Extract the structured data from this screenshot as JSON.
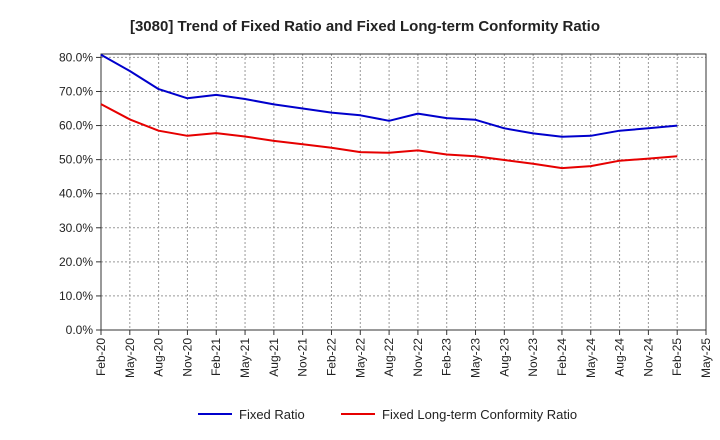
{
  "chart_data": {
    "type": "line",
    "title": "[3080]  Trend of Fixed Ratio and Fixed Long-term Conformity Ratio",
    "xlabel": "",
    "ylabel": "",
    "x": [
      "Feb-20",
      "May-20",
      "Aug-20",
      "Nov-20",
      "Feb-21",
      "May-21",
      "Aug-21",
      "Nov-21",
      "Feb-22",
      "May-22",
      "Aug-22",
      "Nov-22",
      "Feb-23",
      "May-23",
      "Aug-23",
      "Nov-23",
      "Feb-24",
      "May-24",
      "Aug-24",
      "Nov-24",
      "Feb-25"
    ],
    "x_ticks": [
      "Feb-20",
      "May-20",
      "Aug-20",
      "Nov-20",
      "Feb-21",
      "May-21",
      "Aug-21",
      "Nov-21",
      "Feb-22",
      "May-22",
      "Aug-22",
      "Nov-22",
      "Feb-23",
      "May-23",
      "Aug-23",
      "Nov-23",
      "Feb-24",
      "May-24",
      "Aug-24",
      "Nov-24",
      "Feb-25",
      "May-25"
    ],
    "y_ticks": [
      "0.0%",
      "10.0%",
      "20.0%",
      "30.0%",
      "40.0%",
      "50.0%",
      "60.0%",
      "70.0%",
      "80.0%"
    ],
    "ylim": [
      0,
      81
    ],
    "grid": true,
    "legend_position": "bottom",
    "series": [
      {
        "name": "Fixed Ratio",
        "color": "#0000cc",
        "values": [
          80.8,
          76.0,
          70.7,
          68.0,
          69.0,
          67.8,
          66.2,
          65.0,
          63.8,
          63.0,
          61.4,
          63.5,
          62.2,
          61.7,
          59.2,
          57.7,
          56.7,
          57.0,
          58.5,
          59.2,
          60.0
        ]
      },
      {
        "name": "Fixed Long-term Conformity Ratio",
        "color": "#e60000",
        "values": [
          66.3,
          61.8,
          58.5,
          57.0,
          57.8,
          56.8,
          55.5,
          54.5,
          53.5,
          52.2,
          52.0,
          52.7,
          51.5,
          51.0,
          49.9,
          48.8,
          47.5,
          48.1,
          49.7,
          50.3,
          51.0
        ]
      }
    ]
  }
}
